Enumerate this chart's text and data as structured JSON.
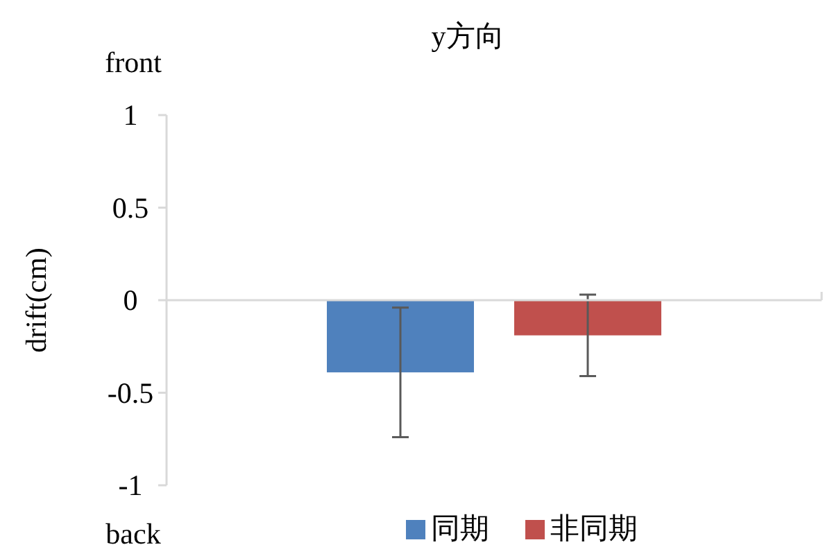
{
  "chart_data": {
    "type": "bar",
    "title": "y方向",
    "ylabel": "drift(cm)",
    "annotations": [
      "front",
      "back"
    ],
    "categories": [
      null
    ],
    "series": [
      {
        "name": "同期",
        "color": "#4f81bd",
        "values": [
          -0.39
        ],
        "errors": [
          0.35
        ]
      },
      {
        "name": "非同期",
        "color": "#c0504d",
        "values": [
          -0.19
        ],
        "errors": [
          0.22
        ]
      }
    ],
    "ylim": [
      -1,
      1
    ],
    "yticks": [
      -1,
      -0.5,
      0,
      0.5,
      1
    ],
    "legend": "bottom"
  }
}
